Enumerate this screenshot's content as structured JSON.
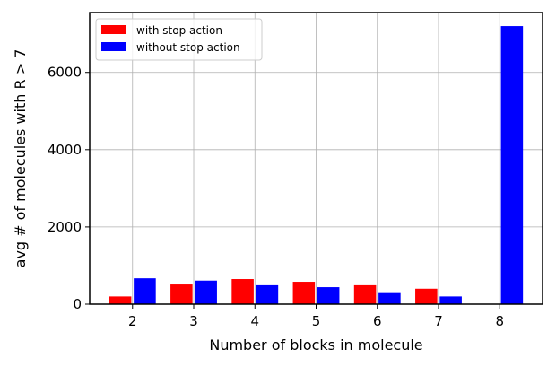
{
  "chart_data": {
    "type": "bar",
    "title": "",
    "xlabel": "Number of blocks in molecule",
    "ylabel": "avg # of molecules with R > 7",
    "categories": [
      "2",
      "3",
      "4",
      "5",
      "6",
      "7",
      "8"
    ],
    "x": [
      2,
      3,
      4,
      5,
      6,
      7,
      8
    ],
    "xlim": [
      1.3,
      8.7
    ],
    "ylim": [
      0,
      7550
    ],
    "yticks": [
      0,
      2000,
      4000,
      6000
    ],
    "ytick_labels": [
      "0",
      "2000",
      "4000",
      "6000"
    ],
    "grid": true,
    "legend_position": "top-left",
    "series": [
      {
        "name": "with stop action",
        "color": "#ff0000",
        "values": [
          200,
          510,
          650,
          580,
          490,
          400,
          0
        ]
      },
      {
        "name": "without stop action",
        "color": "#0000ff",
        "values": [
          670,
          610,
          490,
          440,
          310,
          200,
          7200
        ]
      }
    ]
  }
}
